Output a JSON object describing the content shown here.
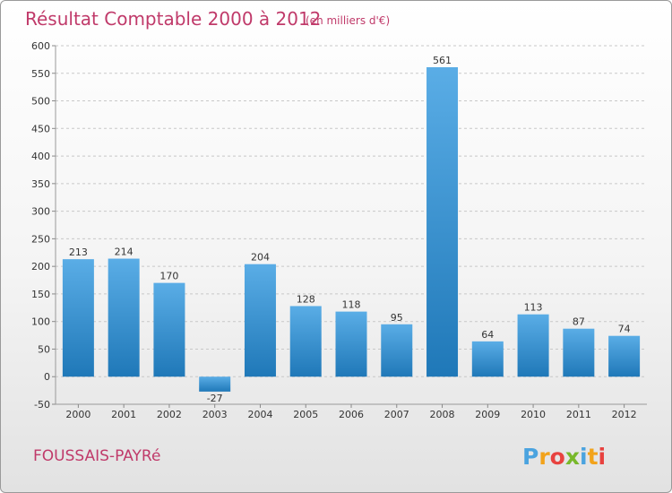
{
  "header": {
    "title": "Résultat Comptable 2000 à 2012",
    "unit": "(en milliers d'€)"
  },
  "footer": {
    "commune": "FOUSSAIS-PAYRé",
    "logo_letters": [
      "P",
      "r",
      "o",
      "x",
      "i",
      "t",
      "i"
    ],
    "logo_colors": [
      "#4aa3df",
      "#f2a31b",
      "#e8423f",
      "#78b82a",
      "#4aa3df",
      "#f2a31b",
      "#e8423f"
    ]
  },
  "colors": {
    "bar_top": "#5aade6",
    "bar_bottom": "#1f78b8",
    "grid": "#c8c8c8",
    "title": "#c03a6a"
  },
  "chart_data": {
    "type": "bar",
    "title": "Résultat Comptable 2000 à 2012",
    "subtitle": "(en milliers d'€)",
    "xlabel": "",
    "ylabel": "",
    "categories": [
      "2000",
      "2001",
      "2002",
      "2003",
      "2004",
      "2005",
      "2006",
      "2007",
      "2008",
      "2009",
      "2010",
      "2011",
      "2012"
    ],
    "values": [
      213,
      214,
      170,
      -27,
      204,
      128,
      118,
      95,
      561,
      64,
      113,
      87,
      74
    ],
    "ylim": [
      -50,
      600
    ],
    "yticks": [
      -50,
      0,
      50,
      100,
      150,
      200,
      250,
      300,
      350,
      400,
      450,
      500,
      550,
      600
    ],
    "grid": true
  }
}
